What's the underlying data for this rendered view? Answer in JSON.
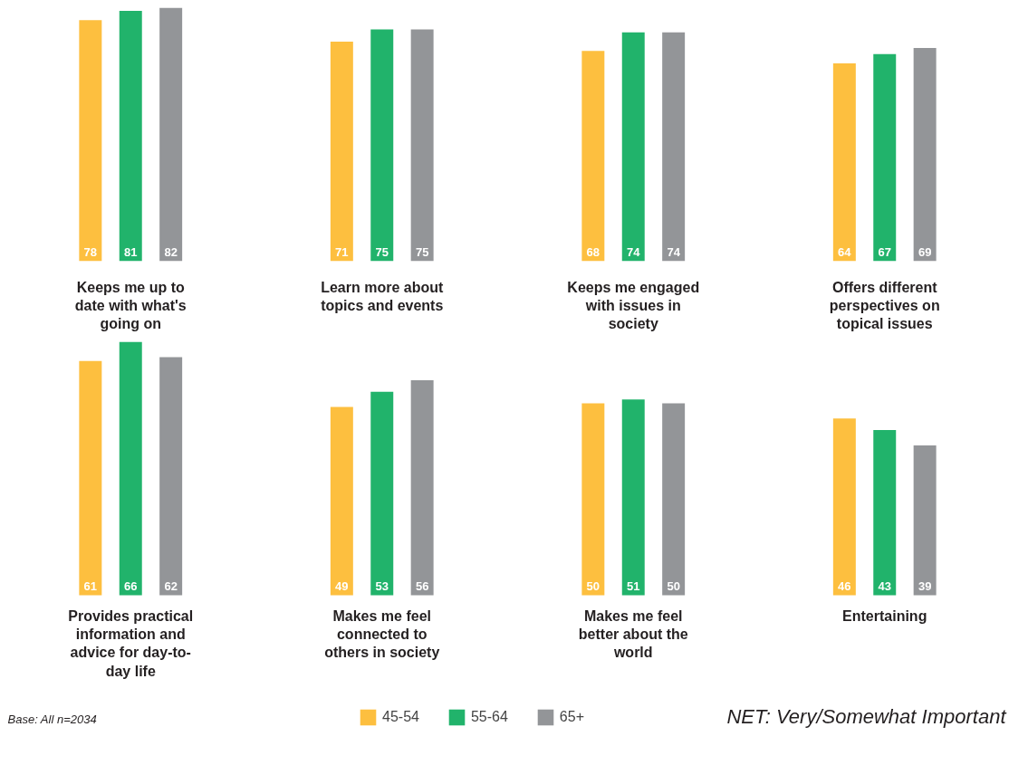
{
  "chart_data": [
    {
      "type": "bar",
      "categories": [
        "Keeps me up to date with what's going on",
        "Learn more about topics and events",
        "Keeps me engaged with issues in society",
        "Offers different perspectives on topical issues"
      ],
      "data_labels": true,
      "series": [
        {
          "color": "#fdbf3f",
          "values": [
            78,
            71,
            68,
            64
          ]
        },
        {
          "color": "#21b36b",
          "values": [
            81,
            75,
            74,
            67
          ]
        },
        {
          "color": "#939598",
          "values": [
            82,
            75,
            74,
            69
          ]
        }
      ]
    },
    {
      "type": "bar",
      "categories": [
        "Provides practical information and advice for day-to-day life",
        "Makes me feel connected to others in society",
        "Makes me feel better about the world",
        "Entertaining"
      ],
      "data_labels": true,
      "legend": "bottom",
      "annotations": [
        "Base: All n=2034",
        "NET: Very/Somewhat Important"
      ],
      "series": [
        {
          "name": "45-54",
          "color": "#fdbf3f",
          "values": [
            61,
            49,
            50,
            46
          ]
        },
        {
          "name": "55-64",
          "color": "#21b36b",
          "values": [
            66,
            53,
            51,
            43
          ]
        },
        {
          "name": "65+",
          "color": "#939598",
          "values": [
            62,
            56,
            50,
            39
          ]
        }
      ]
    }
  ]
}
